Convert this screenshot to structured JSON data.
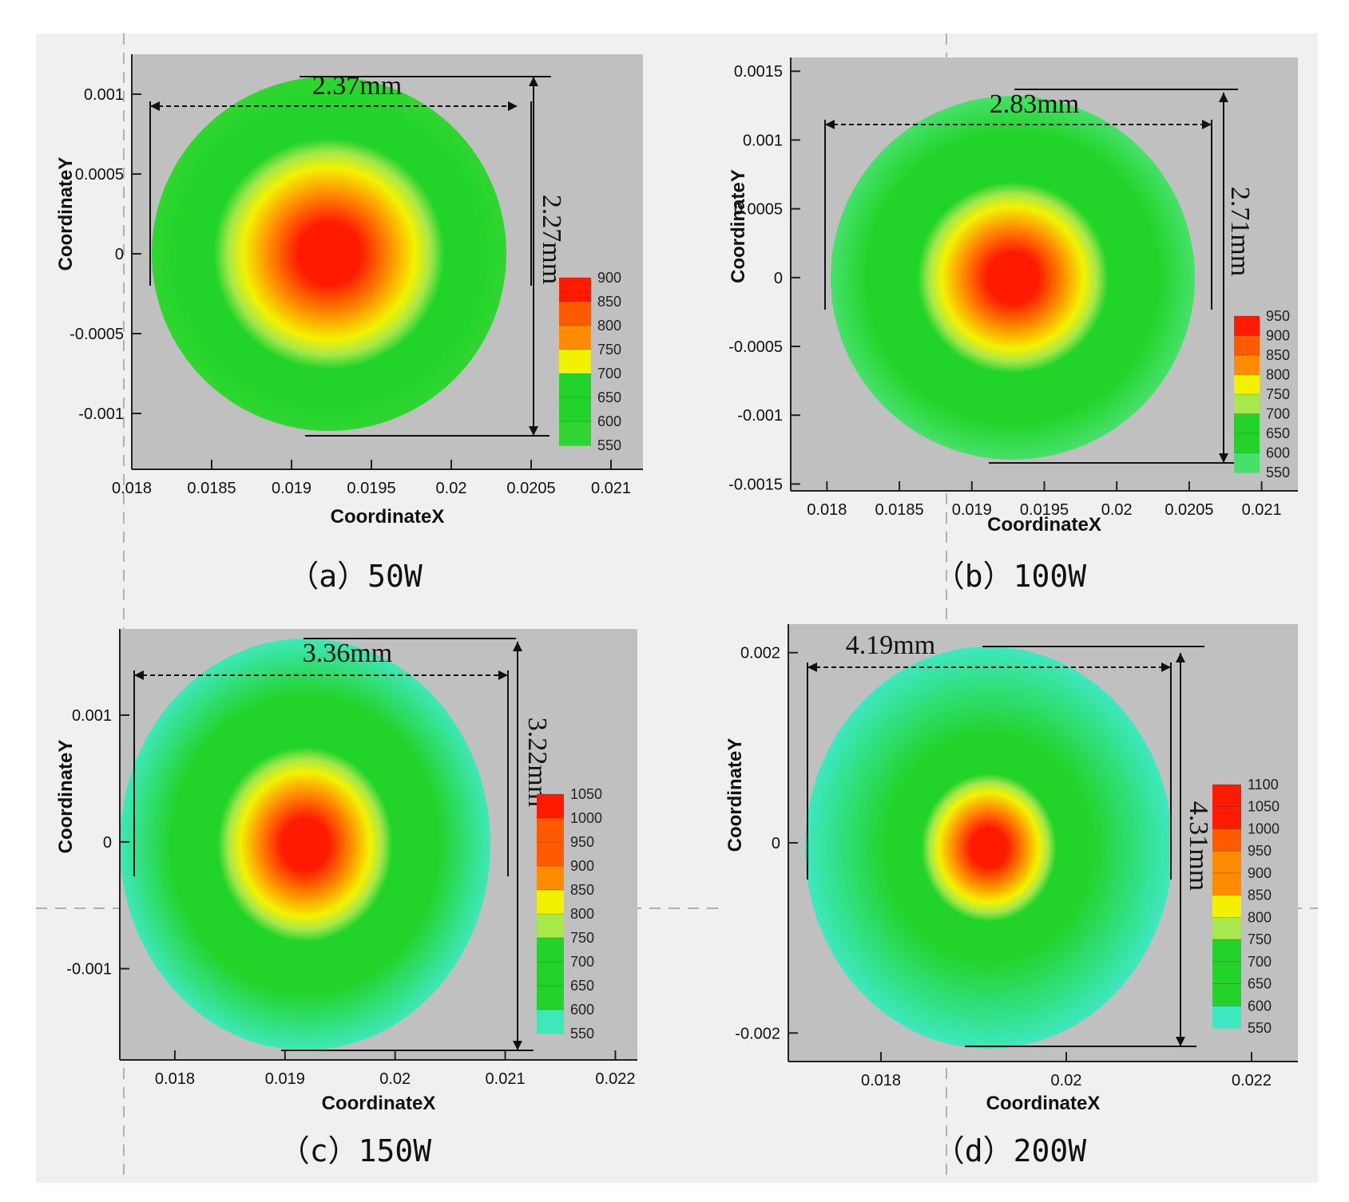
{
  "chart_data": [
    {
      "type": "heatmap",
      "panel": "a",
      "caption": "（a）50W",
      "xlabel": "CoordinateX",
      "ylabel": "CoordinateY",
      "xlim": [
        0.018,
        0.0212
      ],
      "ylim": [
        -0.00135,
        0.00125
      ],
      "x_ticks": [
        "0.018",
        "0.0185",
        "0.019",
        "0.0195",
        "0.02",
        "0.0205",
        "0.021"
      ],
      "x_tick_values": [
        0.018,
        0.0185,
        0.019,
        0.0195,
        0.02,
        0.0205,
        0.021
      ],
      "y_ticks": [
        "0.001",
        "0.0005",
        "0",
        "-0.0005",
        "-0.001"
      ],
      "y_tick_values": [
        0.001,
        0.0005,
        0,
        -0.0005,
        -0.001
      ],
      "center": [
        0.0192,
        0.0
      ],
      "width_mm": 2.37,
      "height_mm": 2.27,
      "width_label": "2.37mm",
      "height_label": "2.27mm",
      "legend": [
        "900",
        "850",
        "800",
        "750",
        "700",
        "650",
        "600",
        "550"
      ],
      "legend_values": [
        900,
        850,
        800,
        750,
        700,
        650,
        600,
        550
      ],
      "outer_color": "#2fd62f",
      "peak_radius_fraction": 0.62,
      "width_measure_top": true
    },
    {
      "type": "heatmap",
      "panel": "b",
      "caption": "（b）100W",
      "xlabel": "CoordinateX",
      "ylabel": "CoordinateY",
      "xlim": [
        0.01775,
        0.02125
      ],
      "ylim": [
        -0.00155,
        0.0016
      ],
      "x_ticks": [
        "0.018",
        "0.0185",
        "0.019",
        "0.0195",
        "0.02",
        "0.0205",
        "0.021"
      ],
      "x_tick_values": [
        0.018,
        0.0185,
        0.019,
        0.0195,
        0.02,
        0.0205,
        0.021
      ],
      "y_ticks": [
        "0.0015",
        "0.001",
        "0.0005",
        "0",
        "-0.0005",
        "-0.001",
        "-0.0015"
      ],
      "y_tick_values": [
        0.0015,
        0.001,
        0.0005,
        0,
        -0.0005,
        -0.001,
        -0.0015
      ],
      "center": [
        0.0192,
        0.0
      ],
      "width_mm": 2.83,
      "height_mm": 2.71,
      "width_label": "2.83mm",
      "height_label": "2.71mm",
      "legend": [
        "950",
        "900",
        "850",
        "800",
        "750",
        "700",
        "650",
        "600",
        "550"
      ],
      "legend_values": [
        950,
        900,
        850,
        800,
        750,
        700,
        650,
        600,
        550
      ],
      "outer_color": "#46e16a",
      "peak_radius_fraction": 0.5
    },
    {
      "type": "heatmap",
      "panel": "c",
      "caption": "（c）150W",
      "xlabel": "CoordinateX",
      "ylabel": "CoordinateY",
      "xlim": [
        0.0175,
        0.0222
      ],
      "ylim": [
        -0.00172,
        0.00168
      ],
      "x_ticks": [
        "0.018",
        "0.019",
        "0.02",
        "0.021",
        "0.022"
      ],
      "x_tick_values": [
        0.018,
        0.019,
        0.02,
        0.021,
        0.022
      ],
      "y_ticks": [
        "0.001",
        "0",
        "-0.001"
      ],
      "y_tick_values": [
        0.001,
        0,
        -0.001
      ],
      "center": [
        0.0192,
        0.0
      ],
      "width_mm": 3.36,
      "height_mm": 3.22,
      "width_label": "3.36mm",
      "height_label": "3.22mm",
      "legend": [
        "1050",
        "1000",
        "950",
        "900",
        "850",
        "800",
        "750",
        "700",
        "650",
        "600",
        "550"
      ],
      "legend_values": [
        1050,
        1000,
        950,
        900,
        850,
        800,
        750,
        700,
        650,
        600,
        550
      ],
      "outer_color": "#3ee8b8",
      "peak_radius_fraction": 0.45
    },
    {
      "type": "heatmap",
      "panel": "d",
      "caption": "（d）200W",
      "xlabel": "CoordinateX",
      "ylabel": "CoordinateY",
      "xlim": [
        0.017,
        0.0225
      ],
      "ylim": [
        -0.0023,
        0.0023
      ],
      "x_ticks": [
        "0.018",
        "0.02",
        "0.022"
      ],
      "x_tick_values": [
        0.018,
        0.02,
        0.022
      ],
      "y_ticks": [
        "0.002",
        "0",
        "-0.002"
      ],
      "y_tick_values": [
        0.002,
        0,
        -0.002
      ],
      "center": [
        0.0191,
        0.0
      ],
      "width_mm": 4.19,
      "height_mm": 4.31,
      "width_label": "4.19mm",
      "height_label": "4.31mm",
      "legend": [
        "1100",
        "1050",
        "1000",
        "950",
        "900",
        "850",
        "800",
        "750",
        "700",
        "650",
        "600",
        "550"
      ],
      "legend_values": [
        1100,
        1050,
        1000,
        950,
        900,
        850,
        800,
        750,
        700,
        650,
        600,
        550
      ],
      "outer_color": "#3ee8c0",
      "peak_radius_fraction": 0.35
    }
  ],
  "colors": {
    "plot_background": "#c0c0c0",
    "frame": "#f0f0f0",
    "hot": "#ff1a00",
    "orange": "#ff8c00",
    "yellow": "#f2f200",
    "light_green": "#a8e84a",
    "green": "#22d42a",
    "cyan": "#44e8c4"
  }
}
